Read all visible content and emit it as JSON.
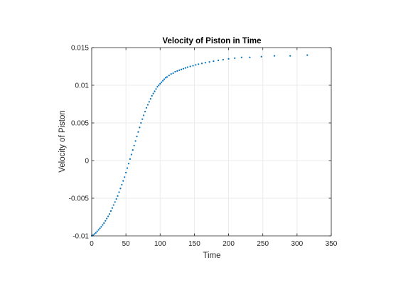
{
  "chart_data": {
    "type": "scatter",
    "title": "Velocity of Piston in Time",
    "xlabel": "Time",
    "ylabel": "Velocity of Piston",
    "xlim": [
      0,
      350
    ],
    "ylim": [
      -0.01,
      0.015
    ],
    "xticks": [
      0,
      50,
      100,
      150,
      200,
      250,
      300,
      350
    ],
    "yticks": [
      -0.01,
      -0.005,
      0,
      0.005,
      0.01,
      0.015
    ],
    "xtick_labels": [
      "0",
      "50",
      "100",
      "150",
      "200",
      "250",
      "300",
      "350"
    ],
    "ytick_labels": [
      "-0.01",
      "-0.005",
      "0",
      "0.005",
      "0.01",
      "0.015"
    ],
    "grid": true,
    "box": true,
    "marker_color": "#0072BD",
    "series": [
      {
        "points": [
          [
            0,
            -0.01
          ],
          [
            2,
            -0.0099
          ],
          [
            4,
            -0.00975
          ],
          [
            6,
            -0.0096
          ],
          [
            8,
            -0.0094
          ],
          [
            10,
            -0.0092
          ],
          [
            12,
            -0.009
          ],
          [
            14,
            -0.0088
          ],
          [
            16,
            -0.00855
          ],
          [
            18,
            -0.0083
          ],
          [
            20,
            -0.008
          ],
          [
            22,
            -0.0077
          ],
          [
            24,
            -0.0074
          ],
          [
            26,
            -0.0071
          ],
          [
            28,
            -0.0067
          ],
          [
            30,
            -0.0063
          ],
          [
            32,
            -0.0059
          ],
          [
            34,
            -0.0055
          ],
          [
            36,
            -0.0051
          ],
          [
            38,
            -0.0047
          ],
          [
            40,
            -0.0042
          ],
          [
            42,
            -0.0037
          ],
          [
            44,
            -0.0032
          ],
          [
            46,
            -0.0027
          ],
          [
            48,
            -0.0022
          ],
          [
            50,
            -0.0016
          ],
          [
            52,
            -0.001
          ],
          [
            54,
            -0.0004
          ],
          [
            56,
            0.0002
          ],
          [
            58,
            0.0008
          ],
          [
            60,
            0.0014
          ],
          [
            62,
            0.002
          ],
          [
            64,
            0.0026
          ],
          [
            66,
            0.0032
          ],
          [
            68,
            0.0038
          ],
          [
            70,
            0.0044
          ],
          [
            72,
            0.005
          ],
          [
            74,
            0.0055
          ],
          [
            76,
            0.006
          ],
          [
            78,
            0.0065
          ],
          [
            80,
            0.007
          ],
          [
            82,
            0.0074
          ],
          [
            84,
            0.0078
          ],
          [
            86,
            0.0082
          ],
          [
            88,
            0.0086
          ],
          [
            90,
            0.0089
          ],
          [
            92,
            0.0092
          ],
          [
            94,
            0.0095
          ],
          [
            96,
            0.0098
          ],
          [
            98,
            0.01
          ],
          [
            100,
            0.0102
          ],
          [
            102,
            0.0104
          ],
          [
            104,
            0.0106
          ],
          [
            106,
            0.0108
          ],
          [
            108,
            0.011
          ],
          [
            110,
            0.0111
          ],
          [
            113,
            0.0113
          ],
          [
            116,
            0.0115
          ],
          [
            119,
            0.0116
          ],
          [
            122,
            0.0118
          ],
          [
            125,
            0.0119
          ],
          [
            128,
            0.012
          ],
          [
            131,
            0.0121
          ],
          [
            134,
            0.0122
          ],
          [
            137,
            0.0123
          ],
          [
            140,
            0.0124
          ],
          [
            144,
            0.0125
          ],
          [
            148,
            0.0126
          ],
          [
            152,
            0.0127
          ],
          [
            156,
            0.0128
          ],
          [
            161,
            0.0129
          ],
          [
            166,
            0.013
          ],
          [
            172,
            0.0131
          ],
          [
            178,
            0.0132
          ],
          [
            185,
            0.0133
          ],
          [
            192,
            0.0134
          ],
          [
            200,
            0.0135
          ],
          [
            209,
            0.0136
          ],
          [
            219,
            0.0137
          ],
          [
            231,
            0.0137
          ],
          [
            248,
            0.0138
          ],
          [
            267,
            0.0139
          ],
          [
            290,
            0.0139
          ],
          [
            315,
            0.014
          ]
        ]
      }
    ]
  }
}
